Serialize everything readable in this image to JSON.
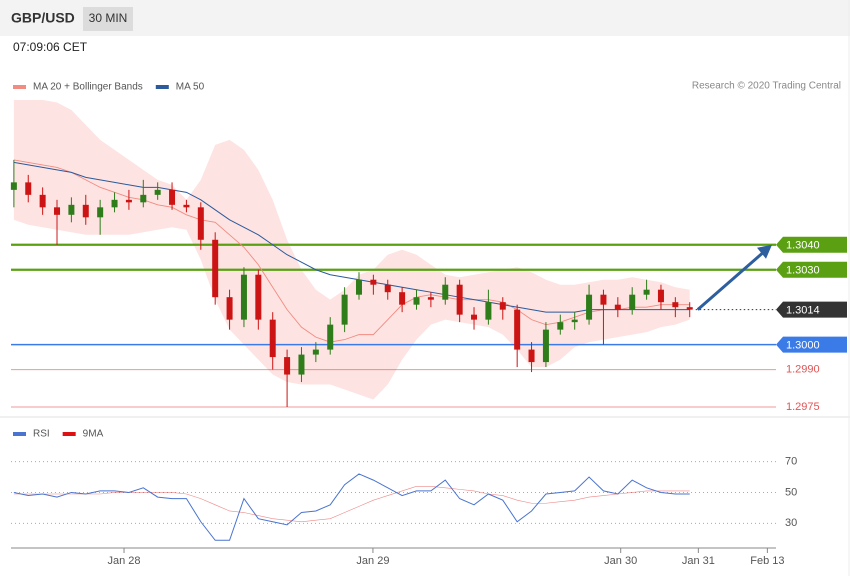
{
  "header": {
    "symbol": "GBP/USD",
    "interval": "30 MIN",
    "time": "07:09:06 CET"
  },
  "chart_data": [
    {
      "type": "candlestick",
      "credit": "Research © 2020 Trading Central",
      "xlim": [
        -0.2,
        53
      ],
      "ylim": [
        1.2973,
        1.3098
      ],
      "up_color": "#2e7d1a",
      "down_color": "#cc1414",
      "open": [
        1.3062,
        1.3065,
        1.306,
        1.3055,
        1.3052,
        1.3056,
        1.3051,
        1.3055,
        1.3058,
        1.3057,
        1.306,
        1.3062,
        1.3056,
        1.3055,
        1.3042,
        1.3019,
        1.301,
        1.3028,
        1.301,
        1.2995,
        1.2988,
        1.2996,
        1.2998,
        1.3008,
        1.302,
        1.3026,
        1.3024,
        1.3021,
        1.3016,
        1.3019,
        1.3018,
        1.3024,
        1.3012,
        1.301,
        1.3017,
        1.3014,
        1.2998,
        1.2993,
        1.3006,
        1.3009,
        1.301,
        1.302,
        1.3016,
        1.3014,
        1.302,
        1.3022,
        1.3017,
        1.3015
      ],
      "high": [
        1.3074,
        1.3068,
        1.3063,
        1.3058,
        1.3059,
        1.306,
        1.3058,
        1.3061,
        1.3062,
        1.3066,
        1.3065,
        1.3065,
        1.3058,
        1.3057,
        1.3045,
        1.3022,
        1.3031,
        1.303,
        1.3013,
        1.2998,
        1.2999,
        1.3001,
        1.3011,
        1.3023,
        1.3029,
        1.3028,
        1.3026,
        1.3023,
        1.3022,
        1.3021,
        1.3027,
        1.3026,
        1.3015,
        1.3022,
        1.3019,
        1.3016,
        1.3001,
        1.3009,
        1.3012,
        1.3013,
        1.3024,
        1.3022,
        1.3019,
        1.3023,
        1.3026,
        1.3024,
        1.3019,
        1.3017
      ],
      "low": [
        1.3055,
        1.3057,
        1.3052,
        1.304,
        1.3049,
        1.3048,
        1.3044,
        1.3053,
        1.3054,
        1.3055,
        1.3058,
        1.3054,
        1.3053,
        1.3038,
        1.3016,
        1.3006,
        1.3007,
        1.3006,
        1.299,
        1.2975,
        1.2985,
        1.2993,
        1.2996,
        1.3005,
        1.3018,
        1.302,
        1.3018,
        1.3013,
        1.3014,
        1.3015,
        1.3016,
        1.3009,
        1.3006,
        1.3008,
        1.301,
        1.2991,
        1.2989,
        1.2991,
        1.3004,
        1.3006,
        1.3008,
        1.3,
        1.3011,
        1.3012,
        1.3018,
        1.3014,
        1.3011,
        1.3011
      ],
      "close": [
        1.3065,
        1.306,
        1.3055,
        1.3052,
        1.3056,
        1.3051,
        1.3055,
        1.3058,
        1.3057,
        1.306,
        1.3062,
        1.3056,
        1.3055,
        1.3042,
        1.3019,
        1.301,
        1.3028,
        1.301,
        1.2995,
        1.2988,
        1.2996,
        1.2998,
        1.3008,
        1.302,
        1.3026,
        1.3024,
        1.3021,
        1.3016,
        1.3019,
        1.3018,
        1.3024,
        1.3012,
        1.301,
        1.3017,
        1.3014,
        1.2998,
        1.2993,
        1.3006,
        1.3009,
        1.301,
        1.302,
        1.3016,
        1.3014,
        1.302,
        1.3022,
        1.3017,
        1.3015,
        1.3014
      ],
      "series": [
        {
          "name": "MA 20 + Bollinger Bands",
          "color": "#f28b82",
          "band_color": "#fde3e1",
          "values": [
            1.3074,
            1.3073,
            1.3072,
            1.3071,
            1.3069,
            1.3066,
            1.3063,
            1.3061,
            1.3059,
            1.3058,
            1.3056,
            1.3055,
            1.3052,
            1.305,
            1.3049,
            1.3044,
            1.3039,
            1.3032,
            1.3023,
            1.3014,
            1.3007,
            1.3003,
            1.3001,
            1.3002,
            1.3004,
            1.3004,
            1.301,
            1.3016,
            1.3019,
            1.302,
            1.3019,
            1.3018,
            1.3018,
            1.3018,
            1.3017,
            1.3014,
            1.301,
            1.3008,
            1.3009,
            1.3011,
            1.3013,
            1.3014,
            1.3014,
            1.3015,
            1.3015,
            1.3016,
            1.3016,
            1.3016
          ],
          "upper": [
            1.3098,
            1.3098,
            1.3098,
            1.3097,
            1.3094,
            1.3088,
            1.3082,
            1.3078,
            1.3074,
            1.307,
            1.3066,
            1.3064,
            1.3058,
            1.3066,
            1.308,
            1.3082,
            1.3078,
            1.307,
            1.3058,
            1.3042,
            1.303,
            1.3022,
            1.3018,
            1.3022,
            1.3028,
            1.303,
            1.3036,
            1.3038,
            1.3036,
            1.3032,
            1.3028,
            1.3027,
            1.3028,
            1.3029,
            1.303,
            1.3031,
            1.3029,
            1.3026,
            1.3024,
            1.3024,
            1.3025,
            1.3026,
            1.3026,
            1.3027,
            1.3026,
            1.3025,
            1.3023,
            1.3022
          ],
          "lower": [
            1.305,
            1.3048,
            1.3047,
            1.3046,
            1.3045,
            1.3044,
            1.3044,
            1.3044,
            1.3044,
            1.3045,
            1.3046,
            1.3047,
            1.3046,
            1.3034,
            1.3018,
            1.3006,
            1.3,
            1.2994,
            1.2988,
            1.2985,
            1.2984,
            1.2984,
            1.2984,
            1.2982,
            1.298,
            1.2978,
            1.2984,
            1.2994,
            1.3002,
            1.3008,
            1.301,
            1.3009,
            1.3008,
            1.3007,
            1.3004,
            1.2998,
            1.2991,
            1.2991,
            1.2994,
            1.2999,
            1.3001,
            1.3002,
            1.3003,
            1.3004,
            1.3005,
            1.3007,
            1.3008,
            1.301
          ]
        },
        {
          "name": "MA 50",
          "color": "#2c5a9c",
          "values": [
            1.3073,
            1.3072,
            1.3071,
            1.307,
            1.3069,
            1.3067,
            1.3066,
            1.3065,
            1.3064,
            1.3063,
            1.3063,
            1.3062,
            1.3061,
            1.3058,
            1.3054,
            1.305,
            1.3047,
            1.3044,
            1.304,
            1.3036,
            1.3033,
            1.303,
            1.3028,
            1.3027,
            1.3026,
            1.3025,
            1.3024,
            1.3023,
            1.3022,
            1.3021,
            1.302,
            1.3019,
            1.3018,
            1.3017,
            1.3016,
            1.3015,
            1.3014,
            1.3013,
            1.3013,
            1.3013,
            1.3014,
            1.3014,
            1.3014,
            1.3014,
            1.3014,
            1.3014,
            1.3014,
            1.3014
          ]
        }
      ],
      "levels": [
        {
          "value": 1.304,
          "label": "1.3040",
          "color": "#5aa012",
          "line": "solid",
          "box": true
        },
        {
          "value": 1.303,
          "label": "1.3030",
          "color": "#5aa012",
          "line": "solid",
          "box": true
        },
        {
          "value": 1.3014,
          "color": "#333333",
          "line": "dotted",
          "box": true
        },
        {
          "value": 1.3,
          "label": "1.3000",
          "color": "#3b7be8",
          "line": "solid",
          "box": true
        },
        {
          "value": 1.299,
          "label": "1.2990",
          "color": "#e05555",
          "line": "thin",
          "box": false
        },
        {
          "value": 1.2975,
          "color": "#e05555",
          "line": "thin",
          "box": false
        }
      ],
      "arrow_color": "#2d5e9e"
    },
    {
      "type": "line",
      "xlim": [
        -0.2,
        53
      ],
      "ylim": [
        14,
        84
      ],
      "yticks": [
        30,
        50,
        70
      ],
      "grid": true,
      "xticks": [
        {
          "value": 7.66,
          "label": "Jan 28"
        },
        {
          "value": 24.97,
          "label": "Jan 29"
        },
        {
          "value": 42.2,
          "label": "Jan 30"
        },
        {
          "value": 47.6,
          "label": "Jan 31"
        },
        {
          "value": 52.4,
          "label": "Feb 13"
        }
      ],
      "series": [
        {
          "name": "RSI",
          "color": "#4a74d0",
          "values": [
            50,
            48,
            49,
            47,
            50,
            49,
            51,
            51,
            50,
            53,
            47,
            46,
            46,
            31,
            19,
            19,
            46,
            33,
            31,
            29,
            37,
            38,
            42,
            55,
            62,
            58,
            53,
            48,
            51,
            51,
            58,
            46,
            42,
            49,
            45,
            31,
            38,
            49,
            50,
            51,
            60,
            51,
            49,
            58,
            53,
            50,
            49,
            49
          ]
        },
        {
          "name": "9MA",
          "color": "#dd1111",
          "values": [
            49,
            49,
            49,
            49,
            49,
            49,
            49,
            50,
            50,
            50,
            50,
            50,
            49,
            46,
            42,
            38,
            37,
            35,
            33,
            32,
            31,
            32,
            33,
            37,
            41,
            45,
            48,
            51,
            54,
            54,
            53,
            52,
            51,
            49,
            48,
            45,
            43,
            43,
            44,
            45,
            47,
            48,
            49,
            50,
            51,
            51,
            51,
            51
          ]
        }
      ]
    }
  ]
}
